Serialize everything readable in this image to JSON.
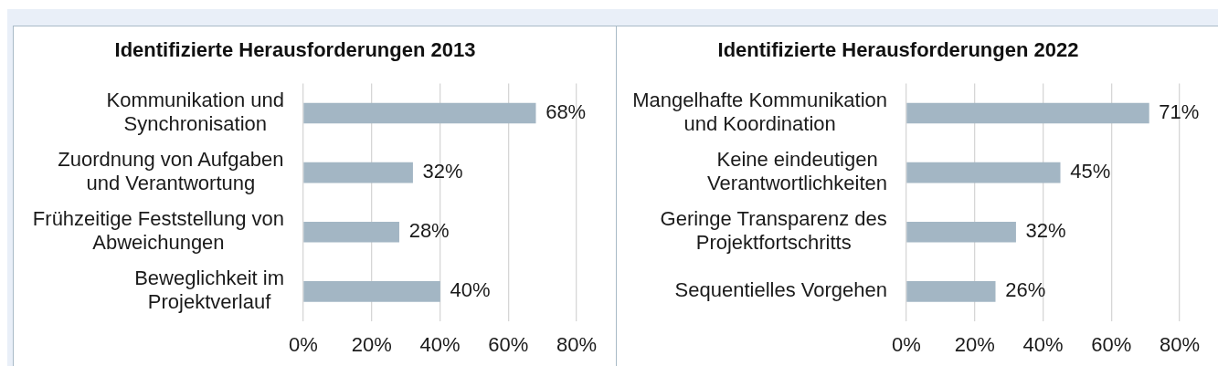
{
  "chart_data": [
    {
      "type": "bar",
      "orientation": "horizontal",
      "title": "Identifizierte Herausforderungen 2013",
      "categories": [
        "Kommunikation und Synchronisation",
        "Zuordnung von Aufgaben und Verantwortung",
        "Frühzeitige Feststellung von Abweichungen",
        "Beweglichkeit im Projektverlauf"
      ],
      "values": [
        68,
        32,
        28,
        40
      ],
      "value_labels": [
        "68%",
        "32%",
        "28%",
        "40%"
      ],
      "color": "#a3b6c4",
      "xlim": [
        0,
        80
      ],
      "xticks": [
        {
          "value": 0,
          "label": "0%"
        },
        {
          "value": 20,
          "label": "20%"
        },
        {
          "value": 40,
          "label": "40%"
        },
        {
          "value": 60,
          "label": "60%"
        },
        {
          "value": 80,
          "label": "80%"
        }
      ],
      "grid": "x"
    },
    {
      "type": "bar",
      "orientation": "horizontal",
      "title": "Identifizierte Herausforderungen 2022",
      "categories": [
        "Mangelhafte Kommunikation und Koordination",
        "Keine eindeutigen Verantwortlichkeiten",
        "Geringe Transparenz des Projektfortschritts",
        "Sequentielles Vorgehen"
      ],
      "values": [
        71,
        45,
        32,
        26
      ],
      "value_labels": [
        "71%",
        "45%",
        "32%",
        "26%"
      ],
      "color": "#a3b6c4",
      "xlim": [
        0,
        80
      ],
      "xticks": [
        {
          "value": 0,
          "label": "0%"
        },
        {
          "value": 20,
          "label": "20%"
        },
        {
          "value": 40,
          "label": "40%"
        },
        {
          "value": 60,
          "label": "60%"
        },
        {
          "value": 80,
          "label": "80%"
        }
      ],
      "grid": "x"
    }
  ]
}
